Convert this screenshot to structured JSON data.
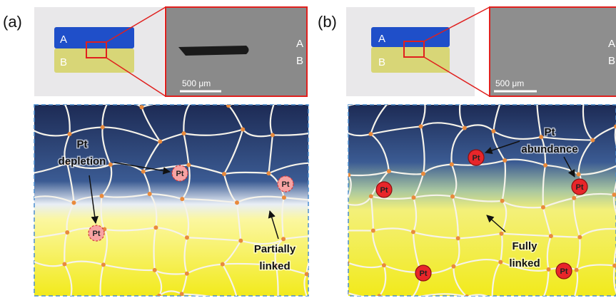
{
  "panels": [
    {
      "label": "(a)",
      "photo_labels": [
        "A",
        "B"
      ],
      "sem_labels": [
        "A",
        "B"
      ],
      "scale_bar": "500 μm",
      "pt_markers": [
        "Pt",
        "Pt",
        "Pt"
      ],
      "annotations": [
        {
          "lines": [
            "Pt",
            "depletion"
          ]
        },
        {
          "lines": [
            "Partially",
            "linked"
          ]
        }
      ]
    },
    {
      "label": "(b)",
      "photo_labels": [
        "A",
        "B"
      ],
      "sem_labels": [
        "A",
        "B"
      ],
      "scale_bar": "500 μm",
      "pt_markers": [
        "Pt",
        "Pt",
        "Pt",
        "Pt",
        "Pt"
      ],
      "annotations": [
        {
          "lines": [
            "Pt",
            "abundance"
          ]
        },
        {
          "lines": [
            "Fully",
            "linked"
          ]
        }
      ]
    }
  ]
}
